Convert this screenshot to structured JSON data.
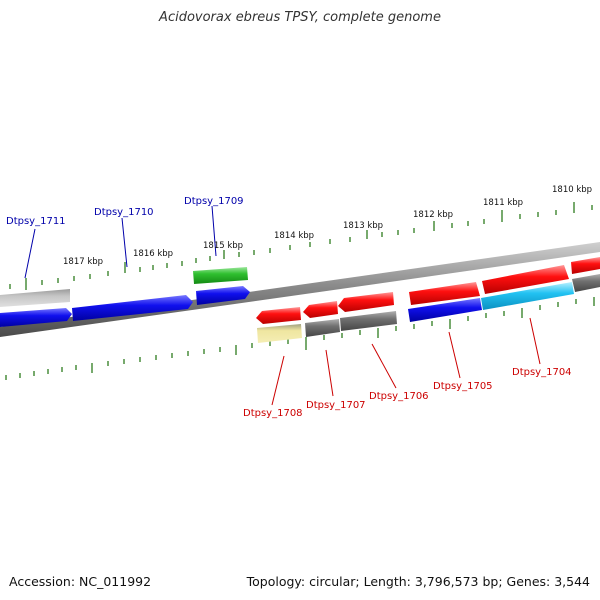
{
  "title": "Acidovorax ebreus TPSY, complete genome",
  "footer": {
    "accession": "Accession: NC_011992",
    "summary": "Topology: circular; Length: 3,796,573 bp; Genes: 3,544"
  },
  "colors": {
    "backbone": "#8a8a8a",
    "tick": "#2e7d1e",
    "label_blue": "#0000aa",
    "label_red": "#cc0000",
    "kbp_text": "#111111"
  },
  "kbp_labels": [
    "1810 kbp",
    "1811 kbp",
    "1812 kbp",
    "1813 kbp",
    "1814 kbp",
    "1815 kbp",
    "1816 kbp",
    "1817 kbp"
  ],
  "gene_labels": {
    "top": [
      "Dtpsy_1711",
      "Dtpsy_1710",
      "Dtpsy_1709"
    ],
    "bottom": [
      "Dtpsy_1708",
      "Dtpsy_1707",
      "Dtpsy_1706",
      "Dtpsy_1705",
      "Dtpsy_1704"
    ]
  },
  "feature_icons": [
    "cds-arrow-icon"
  ]
}
